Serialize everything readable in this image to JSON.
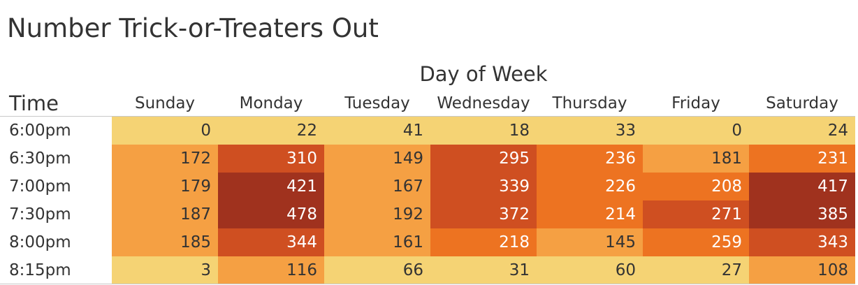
{
  "chart_data": {
    "type": "heatmap",
    "title": "Number Trick-or-Treaters Out",
    "column_group_label": "Day of Week",
    "row_header": "Time",
    "columns": [
      "Sunday",
      "Monday",
      "Tuesday",
      "Wednesday",
      "Thursday",
      "Friday",
      "Saturday"
    ],
    "rows": [
      "6:00pm",
      "6:30pm",
      "7:00pm",
      "7:30pm",
      "8:00pm",
      "8:15pm"
    ],
    "values": [
      [
        0,
        22,
        41,
        18,
        33,
        0,
        24
      ],
      [
        172,
        310,
        149,
        295,
        236,
        181,
        231
      ],
      [
        179,
        421,
        167,
        339,
        226,
        208,
        417
      ],
      [
        187,
        478,
        192,
        372,
        214,
        271,
        385
      ],
      [
        185,
        344,
        161,
        218,
        145,
        259,
        343
      ],
      [
        3,
        116,
        66,
        31,
        60,
        27,
        108
      ]
    ],
    "color_scale": [
      "#f5d374",
      "#f5a043",
      "#ed7321",
      "#cf4f21",
      "#a0321e"
    ]
  }
}
